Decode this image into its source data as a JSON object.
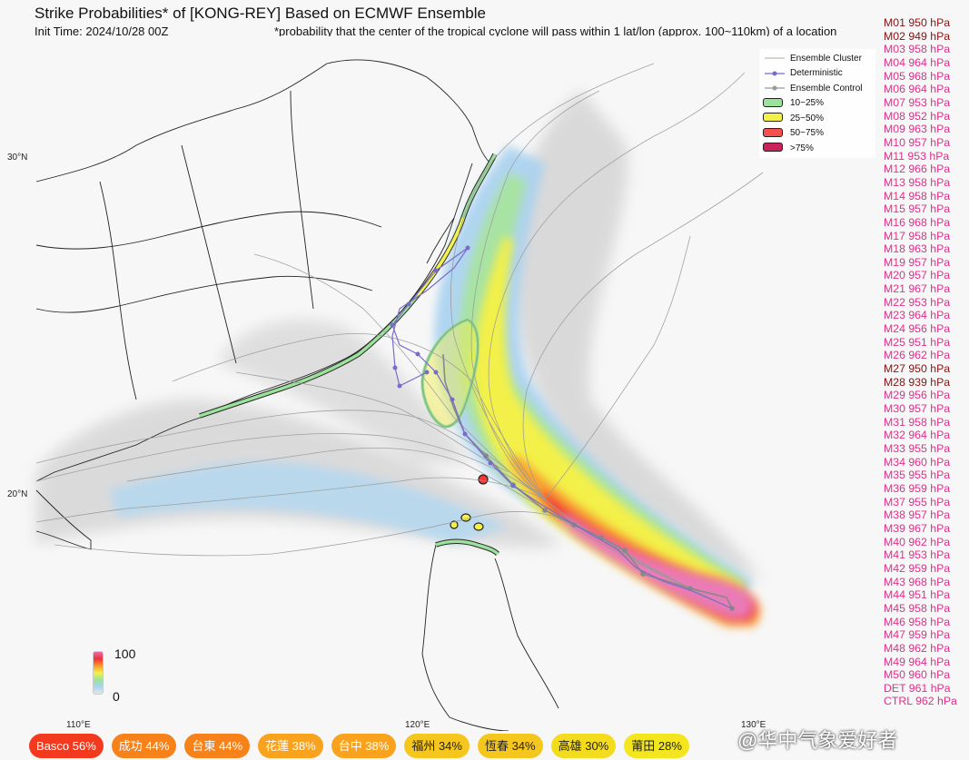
{
  "header": {
    "title": "Strike Probabilities* of [KONG-REY] Based on ECMWF Ensemble",
    "init_time": "Init Time: 2024/10/28 00Z",
    "footnote": "*probability that the center of the tropical cyclone will pass within 1 lat/lon (approx. 100~110km) of a location"
  },
  "axes": {
    "lat_labels": [
      "30°N",
      "20°N"
    ],
    "lon_labels": [
      "110°E",
      "120°E",
      "130°E"
    ]
  },
  "legend": {
    "items": [
      {
        "label": "Ensemble Cluster",
        "kind": "line",
        "color": "#aaaaaa"
      },
      {
        "label": "Deterministic",
        "kind": "line-dot",
        "color": "#7a6bc8"
      },
      {
        "label": "Ensemble Control",
        "kind": "line-dot",
        "color": "#999999"
      },
      {
        "label": "10~25%",
        "kind": "box",
        "color": "#9be29a"
      },
      {
        "label": "25~50%",
        "kind": "box",
        "color": "#f3f04a"
      },
      {
        "label": "50~75%",
        "kind": "box",
        "color": "#f55050"
      },
      {
        "label": ">75%",
        "kind": "box",
        "color": "#c8245a"
      }
    ]
  },
  "members": [
    {
      "label": "M01 950 hPa",
      "color": "#8b1010"
    },
    {
      "label": "M02 949 hPa",
      "color": "#8b1010"
    },
    {
      "label": "M03 958 hPa",
      "color": "#e0308a"
    },
    {
      "label": "M04 964 hPa",
      "color": "#e0308a"
    },
    {
      "label": "M05 968 hPa",
      "color": "#e0308a"
    },
    {
      "label": "M06 964 hPa",
      "color": "#e0308a"
    },
    {
      "label": "M07 953 hPa",
      "color": "#e0308a"
    },
    {
      "label": "M08 952 hPa",
      "color": "#e0308a"
    },
    {
      "label": "M09 963 hPa",
      "color": "#e0308a"
    },
    {
      "label": "M10 957 hPa",
      "color": "#e0308a"
    },
    {
      "label": "M11 953 hPa",
      "color": "#e0308a"
    },
    {
      "label": "M12 966 hPa",
      "color": "#e0308a"
    },
    {
      "label": "M13 958 hPa",
      "color": "#e0308a"
    },
    {
      "label": "M14 958 hPa",
      "color": "#e0308a"
    },
    {
      "label": "M15 957 hPa",
      "color": "#e0308a"
    },
    {
      "label": "M16 968 hPa",
      "color": "#e0308a"
    },
    {
      "label": "M17 958 hPa",
      "color": "#e0308a"
    },
    {
      "label": "M18 963 hPa",
      "color": "#e0308a"
    },
    {
      "label": "M19 957 hPa",
      "color": "#e0308a"
    },
    {
      "label": "M20 957 hPa",
      "color": "#e0308a"
    },
    {
      "label": "M21 967 hPa",
      "color": "#e0308a"
    },
    {
      "label": "M22 953 hPa",
      "color": "#e0308a"
    },
    {
      "label": "M23 964 hPa",
      "color": "#e0308a"
    },
    {
      "label": "M24 956 hPa",
      "color": "#e0308a"
    },
    {
      "label": "M25 951 hPa",
      "color": "#e0308a"
    },
    {
      "label": "M26 962 hPa",
      "color": "#e0308a"
    },
    {
      "label": "M27 950 hPa",
      "color": "#8b1010"
    },
    {
      "label": "M28 939 hPa",
      "color": "#8b1010"
    },
    {
      "label": "M29 956 hPa",
      "color": "#e0308a"
    },
    {
      "label": "M30 957 hPa",
      "color": "#e0308a"
    },
    {
      "label": "M31 958 hPa",
      "color": "#e0308a"
    },
    {
      "label": "M32 964 hPa",
      "color": "#e0308a"
    },
    {
      "label": "M33 955 hPa",
      "color": "#e0308a"
    },
    {
      "label": "M34 960 hPa",
      "color": "#e0308a"
    },
    {
      "label": "M35 955 hPa",
      "color": "#e0308a"
    },
    {
      "label": "M36 959 hPa",
      "color": "#e0308a"
    },
    {
      "label": "M37 955 hPa",
      "color": "#e0308a"
    },
    {
      "label": "M38 957 hPa",
      "color": "#e0308a"
    },
    {
      "label": "M39 967 hPa",
      "color": "#e0308a"
    },
    {
      "label": "M40 962 hPa",
      "color": "#e0308a"
    },
    {
      "label": "M41 953 hPa",
      "color": "#e0308a"
    },
    {
      "label": "M42 959 hPa",
      "color": "#e0308a"
    },
    {
      "label": "M43 968 hPa",
      "color": "#e0308a"
    },
    {
      "label": "M44 951 hPa",
      "color": "#e0308a"
    },
    {
      "label": "M45 958 hPa",
      "color": "#e0308a"
    },
    {
      "label": "M46 958 hPa",
      "color": "#e0308a"
    },
    {
      "label": "M47 959 hPa",
      "color": "#e0308a"
    },
    {
      "label": "M48 962 hPa",
      "color": "#e0308a"
    },
    {
      "label": "M49 964 hPa",
      "color": "#e0308a"
    },
    {
      "label": "M50 960 hPa",
      "color": "#e0308a"
    },
    {
      "label": "DET 961 hPa",
      "color": "#e0308a"
    },
    {
      "label": "CTRL 962 hPa",
      "color": "#e0308a"
    }
  ],
  "colorbar": {
    "max": "100",
    "min": "0"
  },
  "locations": [
    {
      "label": "Basco 56%",
      "color": "#f33a1e"
    },
    {
      "label": "成功 44%",
      "color": "#f7821a"
    },
    {
      "label": "台東 44%",
      "color": "#f7821a"
    },
    {
      "label": "花蓮 38%",
      "color": "#f9a21e"
    },
    {
      "label": "台中 38%",
      "color": "#f9a21e"
    },
    {
      "label": "福州 34%",
      "color": "#f5c61e"
    },
    {
      "label": "恆春 34%",
      "color": "#f5c61e"
    },
    {
      "label": "高雄 30%",
      "color": "#f3dc1e"
    },
    {
      "label": "莆田 28%",
      "color": "#f3e61e"
    }
  ],
  "watermark": "@华中气象爱好者"
}
